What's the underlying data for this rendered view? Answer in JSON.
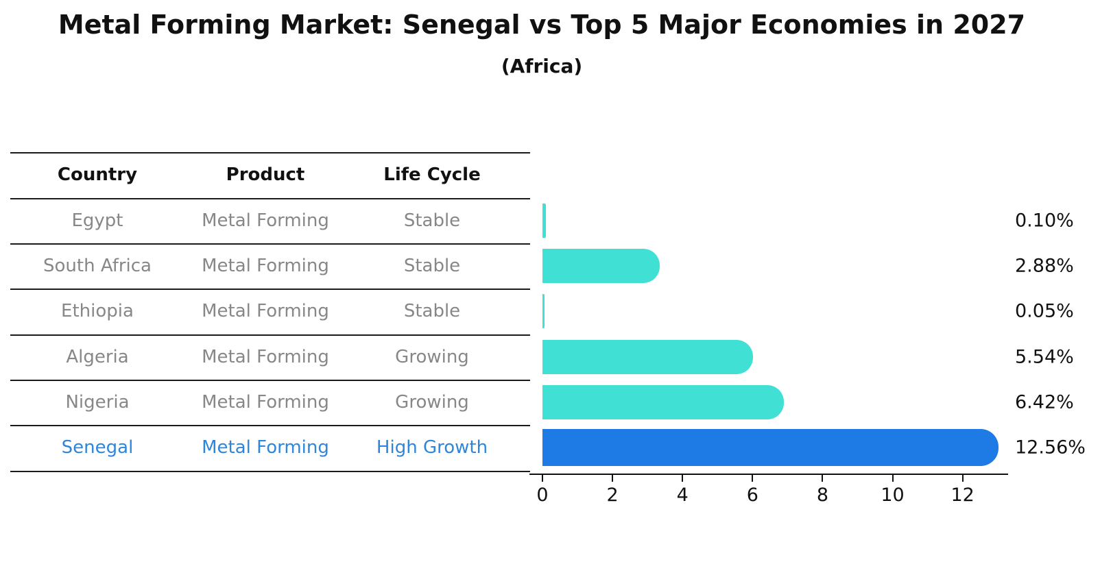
{
  "title": "Metal Forming Market: Senegal vs Top 5 Major Economies in 2027",
  "subtitle": "(Africa)",
  "table": {
    "headers": [
      "Country",
      "Product",
      "Life Cycle"
    ],
    "rows": [
      {
        "country": "Egypt",
        "product": "Metal Forming",
        "life_cycle": "Stable",
        "highlight": false
      },
      {
        "country": "South Africa",
        "product": "Metal Forming",
        "life_cycle": "Stable",
        "highlight": false
      },
      {
        "country": "Ethiopia",
        "product": "Metal Forming",
        "life_cycle": "Stable",
        "highlight": false
      },
      {
        "country": "Algeria",
        "product": "Metal Forming",
        "life_cycle": "Growing",
        "highlight": false
      },
      {
        "country": "Nigeria",
        "product": "Metal Forming",
        "life_cycle": "Growing",
        "highlight": false
      },
      {
        "country": "Senegal",
        "product": "Metal Forming",
        "life_cycle": "High Growth",
        "highlight": true
      }
    ]
  },
  "chart_data": {
    "type": "bar",
    "orientation": "horizontal",
    "title": "Metal Forming Market: Senegal vs Top 5 Major Economies in 2027",
    "subtitle": "(Africa)",
    "categories": [
      "Egypt",
      "South Africa",
      "Ethiopia",
      "Algeria",
      "Nigeria",
      "Senegal"
    ],
    "values": [
      0.1,
      2.88,
      0.05,
      5.54,
      6.42,
      12.56
    ],
    "value_labels": [
      "0.10%",
      "2.88%",
      "0.05%",
      "5.54%",
      "6.42%",
      "12.56%"
    ],
    "x_ticks": [
      "0",
      "2",
      "4",
      "6",
      "8",
      "10",
      "12"
    ],
    "xlim": [
      0,
      13.3
    ],
    "grid": false,
    "legend": "none",
    "highlight_index": 5,
    "bar_color": "#41E0D5",
    "highlight_color": "#1E7AE4"
  },
  "colors": {
    "background": "#ffffff",
    "text_primary": "#111111",
    "text_muted": "#878787",
    "highlight_text": "#2E86DC",
    "line": "#1a1a1a"
  }
}
